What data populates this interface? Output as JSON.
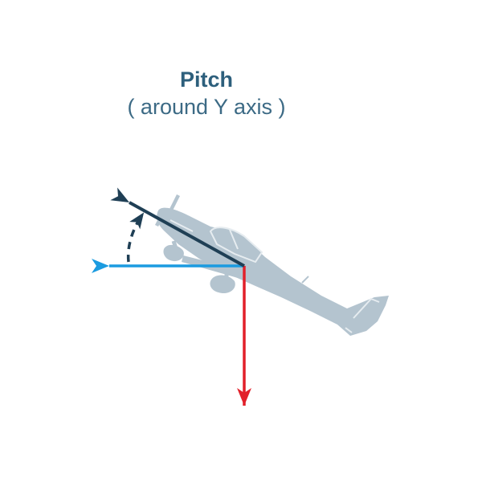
{
  "heading": {
    "title": "Pitch",
    "subtitle": "( around Y axis )"
  },
  "colors": {
    "title_text": "#2d5f7c",
    "subtitle_text": "#3c6a85",
    "airplane": "#b4c4cf",
    "airplane_detail": "#e6ecf0",
    "pitched_axis": "#1f3f55",
    "horizontal_axis": "#1b9be0",
    "vertical_axis": "#e2202a",
    "rotation_arc": "#1f3f55"
  },
  "icons": {
    "airplane": "airplane-silhouette-icon",
    "pitched_arrow": "pitched-axis-arrow",
    "horizontal_arrow": "horizontal-axis-arrow",
    "vertical_arrow": "vertical-axis-arrow",
    "rotation": "pitch-rotation-arc"
  }
}
